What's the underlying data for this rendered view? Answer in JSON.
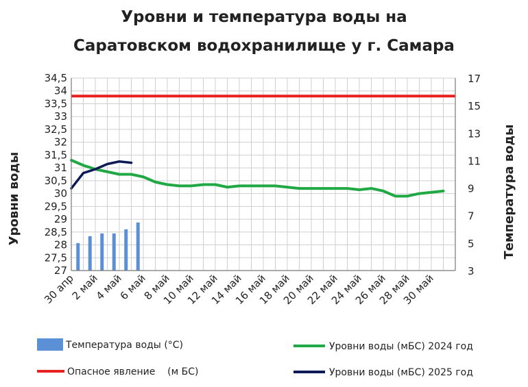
{
  "chart_data": {
    "type": "line",
    "title_line1": "Уровни и температура  воды на",
    "title_line2": "Саратовском водохранилище у  г. Самара",
    "ylabel_left": "Уровни воды",
    "ylabel_right": "Температура воды",
    "left_axis": {
      "range": [
        27,
        34.5
      ],
      "ticks": [
        "27",
        "27,5",
        "28",
        "28,5",
        "29",
        "29,5",
        "30",
        "30,5",
        "31",
        "31,5",
        "32",
        "32,5",
        "33",
        "33,5",
        "34",
        "34,5"
      ]
    },
    "right_axis": {
      "range": [
        3,
        17
      ],
      "ticks": [
        "3",
        "5",
        "7",
        "9",
        "11",
        "13",
        "15",
        "17"
      ]
    },
    "x_labels": [
      "30 апр",
      "2 май",
      "4 май",
      "6 май",
      "8 май",
      "10 май",
      "12 май",
      "14 май",
      "16 май",
      "18 май",
      "20 май",
      "22 май",
      "24 май",
      "26 май",
      "28 май",
      "30 май"
    ],
    "grid": true,
    "series": [
      {
        "name": "Температура воды (°С)",
        "kind": "bar",
        "axis": "right",
        "color": "#5b8fd6",
        "values": [
          5.0,
          5.5,
          5.7,
          5.7,
          6.0,
          6.5
        ]
      },
      {
        "name": "Уровни воды (мБС) 2024 год",
        "kind": "line",
        "axis": "left",
        "color": "#1fa844",
        "values": [
          31.3,
          31.1,
          30.95,
          30.85,
          30.75,
          30.75,
          30.65,
          30.45,
          30.35,
          30.3,
          30.3,
          30.35,
          30.35,
          30.25,
          30.3,
          30.3,
          30.3,
          30.3,
          30.25,
          30.2,
          30.2,
          30.2,
          30.2,
          30.2,
          30.15,
          30.2,
          30.1,
          29.9,
          29.9,
          30.0,
          30.05,
          30.1
        ]
      },
      {
        "name": "Опасное явление    (м БС)",
        "kind": "line",
        "axis": "left",
        "color": "#e8201f",
        "values": [
          33.8,
          33.8
        ]
      },
      {
        "name": "Уровни воды (мБС) 2025 год",
        "kind": "line",
        "axis": "left",
        "color": "#0d1a55",
        "values": [
          30.2,
          30.8,
          30.95,
          31.15,
          31.25,
          31.2
        ]
      }
    ],
    "legend_position": "bottom"
  },
  "legend": {
    "temp": "Температура воды (°С)",
    "level2024": "Уровни воды (мБС) 2024 год",
    "danger": "Опасное явление    (м БС)",
    "level2025": "Уровни воды (мБС) 2025 год"
  }
}
